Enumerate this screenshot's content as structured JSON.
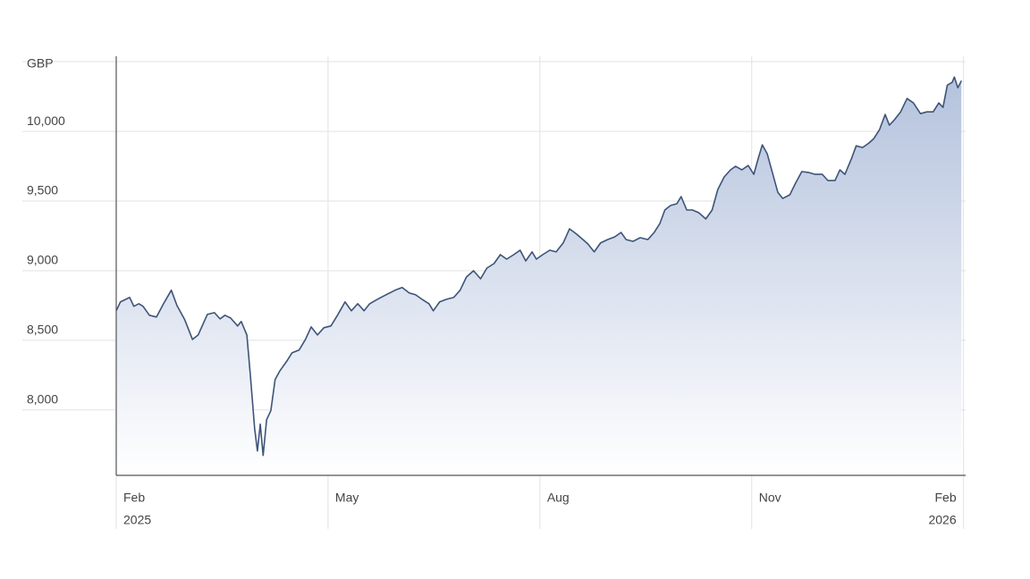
{
  "chart_data": {
    "type": "area",
    "y_unit": "GBP",
    "color": "#3d5478",
    "fill": "#b4c2dd",
    "grid": true,
    "x": [
      0,
      0.06,
      0.19,
      0.25,
      0.32,
      0.38,
      0.47,
      0.57,
      0.67,
      0.78,
      0.86,
      0.97,
      1.08,
      1.16,
      1.29,
      1.39,
      1.47,
      1.54,
      1.62,
      1.72,
      1.77,
      1.85,
      1.9,
      1.96,
      2.0,
      2.04,
      2.08,
      2.13,
      2.19,
      2.25,
      2.32,
      2.41,
      2.49,
      2.59,
      2.68,
      2.76,
      2.85,
      2.94,
      3.04,
      3.14,
      3.24,
      3.33,
      3.42,
      3.51,
      3.59,
      3.7,
      3.82,
      3.95,
      4.05,
      4.15,
      4.24,
      4.33,
      4.43,
      4.49,
      4.58,
      4.68,
      4.78,
      4.87,
      4.96,
      5.06,
      5.16,
      5.25,
      5.35,
      5.44,
      5.53,
      5.63,
      5.72,
      5.8,
      5.89,
      5.95,
      6.04,
      6.14,
      6.23,
      6.33,
      6.42,
      6.52,
      6.61,
      6.68,
      6.77,
      6.86,
      6.96,
      7.06,
      7.15,
      7.22,
      7.32,
      7.42,
      7.53,
      7.62,
      7.7,
      7.77,
      7.85,
      7.94,
      8.0,
      8.08,
      8.16,
      8.25,
      8.35,
      8.44,
      8.52,
      8.61,
      8.7,
      8.77,
      8.86,
      8.95,
      9.03,
      9.09,
      9.15,
      9.22,
      9.3,
      9.37,
      9.44,
      9.54,
      9.62,
      9.71,
      9.81,
      9.9,
      10.0,
      10.08,
      10.18,
      10.25,
      10.32,
      10.41,
      10.48,
      10.57,
      10.66,
      10.73,
      10.81,
      10.89,
      10.95,
      11.01,
      11.11,
      11.2,
      11.29,
      11.39,
      11.48,
      11.57,
      11.65,
      11.71,
      11.77,
      11.84,
      11.87,
      11.92,
      11.97
    ],
    "values": [
      8712,
      8776,
      8808,
      8744,
      8763,
      8744,
      8680,
      8667,
      8763,
      8860,
      8750,
      8648,
      8506,
      8538,
      8686,
      8699,
      8654,
      8680,
      8660,
      8603,
      8635,
      8538,
      8250,
      7866,
      7705,
      7898,
      7673,
      7930,
      7994,
      8218,
      8282,
      8346,
      8410,
      8430,
      8506,
      8596,
      8538,
      8590,
      8603,
      8686,
      8776,
      8712,
      8763,
      8712,
      8763,
      8795,
      8827,
      8860,
      8879,
      8840,
      8827,
      8795,
      8763,
      8712,
      8776,
      8795,
      8808,
      8860,
      8955,
      9000,
      8942,
      9019,
      9051,
      9115,
      9083,
      9115,
      9147,
      9070,
      9135,
      9083,
      9115,
      9147,
      9135,
      9199,
      9301,
      9263,
      9224,
      9192,
      9135,
      9199,
      9224,
      9243,
      9275,
      9224,
      9211,
      9237,
      9224,
      9275,
      9340,
      9436,
      9468,
      9481,
      9532,
      9436,
      9436,
      9417,
      9372,
      9436,
      9583,
      9673,
      9724,
      9750,
      9724,
      9756,
      9692,
      9801,
      9904,
      9840,
      9692,
      9564,
      9519,
      9545,
      9628,
      9712,
      9705,
      9692,
      9692,
      9647,
      9647,
      9724,
      9692,
      9801,
      9897,
      9885,
      9917,
      9949,
      10013,
      10122,
      10045,
      10077,
      10141,
      10237,
      10205,
      10128,
      10141,
      10141,
      10205,
      10173,
      10333,
      10353,
      10391,
      10314,
      10365
    ],
    "xlim": [
      0,
      12.03
    ],
    "xticks": [
      {
        "value": 0,
        "label": "Feb"
      },
      {
        "value": 3,
        "label": "May"
      },
      {
        "value": 6,
        "label": "Aug"
      },
      {
        "value": 9,
        "label": "Nov"
      },
      {
        "value": 12,
        "label": "Feb"
      }
    ],
    "xtick_years": [
      {
        "value": 0,
        "label": "2025"
      },
      {
        "value": 12,
        "label": "2026"
      }
    ],
    "ylim": [
      7530,
      10540
    ],
    "yticks": [
      {
        "value": 8000,
        "label": "8,000"
      },
      {
        "value": 8500,
        "label": "8,500"
      },
      {
        "value": 9000,
        "label": "9,000"
      },
      {
        "value": 9500,
        "label": "9,500"
      },
      {
        "value": 10000,
        "label": "10,000"
      }
    ]
  }
}
